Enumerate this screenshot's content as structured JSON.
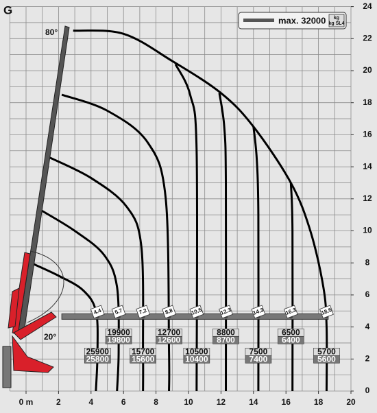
{
  "chart_data": {
    "type": "line",
    "title": "G",
    "max_label": "max. 32000",
    "unit_labels": [
      "kg",
      "kg SL4"
    ],
    "angle_labels": [
      "80°",
      "20°"
    ],
    "xlim": [
      -1,
      20
    ],
    "ylim": [
      0,
      24
    ],
    "xticks": [
      {
        "value": 0,
        "label": "0 m"
      },
      2,
      4,
      6,
      8,
      10,
      12,
      14,
      16,
      18,
      20
    ],
    "yticks": [
      0,
      2,
      4,
      6,
      8,
      10,
      12,
      14,
      16,
      18,
      20,
      22,
      24
    ],
    "grid": true,
    "xgrid": [
      -1,
      0,
      1,
      2,
      3,
      4,
      5,
      6,
      7,
      8,
      9,
      10,
      11,
      12,
      13,
      14,
      15,
      16,
      17,
      18,
      19,
      20
    ],
    "ygrid": [
      0,
      1,
      2,
      3,
      4,
      5,
      6,
      7,
      8,
      9,
      10,
      11,
      12,
      13,
      14,
      15,
      16,
      17,
      18,
      19,
      20,
      21,
      22,
      23,
      24
    ],
    "reach": [
      4.4,
      5.7,
      7.2,
      8.8,
      10.5,
      12.3,
      14.3,
      16.3,
      18.5
    ],
    "loads": [
      [
        25900,
        25800
      ],
      [
        19900,
        19800
      ],
      [
        15700,
        15600
      ],
      [
        12700,
        12600
      ],
      [
        10500,
        10400
      ],
      [
        8800,
        8700
      ],
      [
        7500,
        7400
      ],
      [
        6500,
        6400
      ],
      [
        5700,
        5600
      ]
    ],
    "curves": [
      {
        "x": [
          0.3,
          2.0,
          3.5,
          4.3,
          4.4,
          4.3
        ],
        "y": [
          8.0,
          7.2,
          6.3,
          5.0,
          2.5,
          0
        ]
      },
      {
        "x": [
          0.9,
          3.0,
          4.8,
          5.6,
          5.7,
          5.6
        ],
        "y": [
          11.3,
          10.0,
          8.5,
          6.5,
          2.5,
          0
        ]
      },
      {
        "x": [
          1.4,
          4.0,
          6.2,
          7.1,
          7.2,
          7.2
        ],
        "y": [
          14.6,
          13.3,
          11.5,
          9.0,
          2.5,
          0
        ]
      },
      {
        "x": [
          2.2,
          5.0,
          7.5,
          8.6,
          8.8,
          8.8
        ],
        "y": [
          18.5,
          17.5,
          15.5,
          12.0,
          2.5,
          0
        ]
      },
      {
        "x": [
          9.2,
          10.1,
          10.5,
          10.5
        ],
        "y": [
          20.4,
          18.5,
          15.0,
          0
        ]
      },
      {
        "x": [
          11.9,
          12.2,
          12.3,
          12.3
        ],
        "y": [
          18.6,
          16.5,
          13.0,
          0
        ]
      },
      {
        "x": [
          14.0,
          14.2,
          14.3,
          14.3
        ],
        "y": [
          16.5,
          14.5,
          11.0,
          0
        ]
      },
      {
        "x": [
          16.3,
          16.4,
          16.4
        ],
        "y": [
          13.0,
          10.0,
          0
        ]
      },
      {
        "x": [
          2.9,
          6.0,
          9.0,
          12.0,
          14.0,
          16.3,
          17.5,
          18.3,
          18.5,
          18.5
        ],
        "y": [
          22.5,
          22.3,
          20.6,
          18.6,
          16.5,
          13.0,
          10.0,
          6.5,
          4.0,
          0
        ]
      }
    ]
  }
}
